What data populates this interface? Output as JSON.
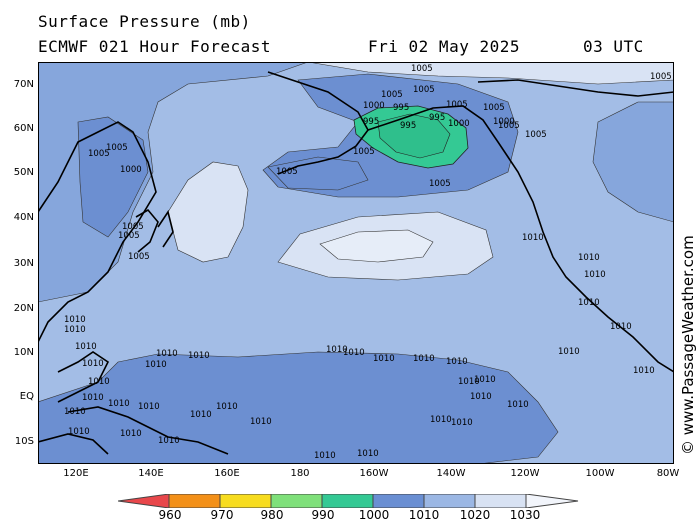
{
  "header": {
    "line1": "Surface Pressure (mb)",
    "model": "ECMWF 021 Hour Forecast",
    "date": "Fri 02 May 2025",
    "time": "03 UTC"
  },
  "watermark": "© www.PassageWeather.com",
  "lat_labels": [
    "70N",
    "60N",
    "50N",
    "40N",
    "30N",
    "20N",
    "10N",
    "EQ",
    "10S"
  ],
  "lon_labels": [
    "120E",
    "140E",
    "160E",
    "180",
    "160W",
    "140W",
    "120W",
    "100W",
    "80W"
  ],
  "colorbar": {
    "labels": [
      "960",
      "970",
      "980",
      "990",
      "1000",
      "1010",
      "1020",
      "1030"
    ],
    "colors": [
      "#e8474b",
      "#f39018",
      "#f7dc1f",
      "#7fe07a",
      "#34c994",
      "#6a8fd3",
      "#9bb7e4",
      "#d8e2f3"
    ]
  },
  "colors": {
    "ocean_1010_1020": "#a3bde6",
    "band_1005_1010": "#7b9ed9",
    "band_1000_1005": "#6c8fd1",
    "band_990_1000": "#34c994",
    "band_1020_1030": "#d9e3f4",
    "land_outline": "#000000"
  },
  "isobar_labels": [
    "1005",
    "1005",
    "1005",
    "1000",
    "995",
    "995",
    "995",
    "995",
    "1000",
    "1000",
    "1005",
    "1005",
    "1005",
    "1005",
    "1005",
    "1005",
    "1005",
    "1000",
    "1005",
    "1005",
    "1005",
    "1005",
    "1005",
    "1005",
    "1010",
    "1010",
    "1010",
    "1010",
    "1010",
    "1010",
    "1010",
    "1010",
    "1010",
    "1010",
    "1010",
    "1010",
    "1010",
    "1010",
    "1010",
    "1010",
    "1010",
    "1010",
    "1010",
    "1010",
    "1010",
    "1010",
    "1010",
    "1010",
    "1010",
    "1010",
    "1010",
    "1010",
    "1010",
    "1010",
    "1010",
    "1010",
    "1010",
    "1010",
    "1010",
    "1010",
    "1010",
    "1010"
  ]
}
